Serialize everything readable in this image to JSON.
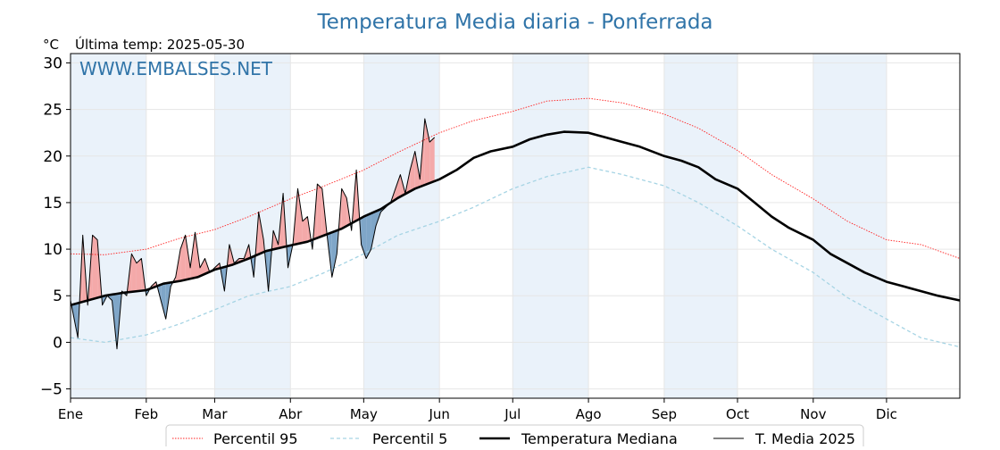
{
  "title": "Temperatura Media diaria - Ponferrada",
  "unit_label": "°C",
  "last_temp_label": "Última temp: 2025-05-30",
  "watermark": "WWW.EMBALSES.NET",
  "colors": {
    "title": "#3074a8",
    "watermark": "#3074a8",
    "p95": "#ff2020",
    "p5": "#a6d4e4",
    "median": "#000000",
    "media2025": "#000000",
    "above_fill": "#f4a9a9",
    "below_fill": "#7fa6c8",
    "month_band": "#eaf2fa"
  },
  "chart_data": {
    "type": "line",
    "xlabel": "",
    "ylabel": "°C",
    "ylim": [
      -6,
      31
    ],
    "y_ticks": [
      -5,
      0,
      5,
      10,
      15,
      20,
      25,
      30
    ],
    "y_tick_labels": [
      "−5",
      "0",
      "5",
      "10",
      "15",
      "20",
      "25",
      "30"
    ],
    "x_tick_labels": [
      "Ene",
      "Feb",
      "Mar",
      "Abr",
      "May",
      "Jun",
      "Jul",
      "Ago",
      "Sep",
      "Oct",
      "Nov",
      "Dic"
    ],
    "x_tick_days": [
      1,
      32,
      60,
      91,
      121,
      152,
      182,
      213,
      244,
      274,
      305,
      335
    ],
    "shaded_months": [
      "Ene",
      "Mar",
      "May",
      "Jul",
      "Sep",
      "Nov"
    ],
    "grid": true,
    "legend_position": "bottom",
    "series": [
      {
        "name": "Percentil 95",
        "style": "dotted",
        "day": [
          1,
          15,
          32,
          46,
          60,
          74,
          91,
          105,
          121,
          135,
          152,
          166,
          182,
          196,
          213,
          227,
          244,
          258,
          274,
          288,
          305,
          319,
          335,
          349,
          365
        ],
        "values": [
          9.5,
          9.4,
          10.0,
          11.2,
          12.1,
          13.5,
          15.4,
          16.8,
          18.5,
          20.4,
          22.5,
          23.8,
          24.8,
          25.9,
          26.2,
          25.7,
          24.5,
          23.0,
          20.6,
          18.0,
          15.4,
          13.0,
          11.0,
          10.5,
          9.0
        ]
      },
      {
        "name": "Percentil 5",
        "style": "dashed",
        "day": [
          1,
          15,
          32,
          46,
          60,
          74,
          91,
          105,
          121,
          135,
          152,
          166,
          182,
          196,
          213,
          227,
          244,
          258,
          274,
          288,
          305,
          319,
          335,
          349,
          365
        ],
        "values": [
          0.5,
          0.0,
          0.8,
          2.0,
          3.5,
          5.0,
          6.0,
          7.5,
          9.5,
          11.5,
          13.0,
          14.5,
          16.5,
          17.8,
          18.8,
          18.0,
          16.8,
          15.0,
          12.5,
          10.0,
          7.5,
          4.8,
          2.5,
          0.5,
          -0.5
        ]
      },
      {
        "name": "Temperatura Mediana",
        "style": "thick",
        "day": [
          1,
          8,
          15,
          22,
          32,
          39,
          46,
          53,
          60,
          67,
          74,
          81,
          91,
          98,
          105,
          112,
          121,
          128,
          135,
          142,
          152,
          159,
          166,
          173,
          182,
          189,
          196,
          203,
          213,
          220,
          227,
          234,
          244,
          251,
          258,
          265,
          274,
          281,
          288,
          295,
          305,
          312,
          319,
          326,
          335,
          342,
          349,
          356,
          365
        ],
        "values": [
          4.0,
          4.5,
          5.0,
          5.3,
          5.6,
          6.3,
          6.6,
          7.0,
          7.8,
          8.3,
          9.0,
          9.8,
          10.4,
          10.8,
          11.5,
          12.2,
          13.5,
          14.3,
          15.5,
          16.5,
          17.5,
          18.5,
          19.8,
          20.5,
          21.0,
          21.8,
          22.3,
          22.6,
          22.5,
          22.0,
          21.5,
          21.0,
          20.0,
          19.5,
          18.8,
          17.5,
          16.5,
          15.0,
          13.5,
          12.3,
          11.0,
          9.5,
          8.5,
          7.5,
          6.5,
          6.0,
          5.5,
          5.0,
          4.5
        ]
      },
      {
        "name": "T. Media 2025",
        "style": "thin",
        "day": [
          1,
          4,
          6,
          8,
          10,
          12,
          14,
          16,
          18,
          20,
          22,
          24,
          26,
          28,
          30,
          32,
          34,
          36,
          38,
          40,
          42,
          44,
          46,
          48,
          50,
          52,
          54,
          56,
          58,
          60,
          62,
          64,
          66,
          68,
          70,
          72,
          74,
          76,
          78,
          80,
          82,
          84,
          86,
          88,
          90,
          92,
          94,
          96,
          98,
          100,
          102,
          104,
          106,
          108,
          110,
          112,
          114,
          116,
          118,
          120,
          122,
          124,
          126,
          128,
          130,
          132,
          134,
          136,
          138,
          140,
          142,
          144,
          146,
          148,
          150
        ],
        "values": [
          4.5,
          0.5,
          11.5,
          4.0,
          11.5,
          11.0,
          4.0,
          5.0,
          4.5,
          -0.7,
          5.5,
          5.0,
          9.5,
          8.5,
          9.0,
          5.0,
          6.0,
          6.5,
          4.5,
          2.5,
          6.0,
          7.0,
          10.0,
          11.5,
          8.0,
          11.8,
          8.0,
          9.0,
          7.5,
          8.0,
          8.5,
          5.5,
          10.5,
          8.5,
          9.0,
          9.0,
          10.5,
          7.0,
          14.0,
          11.0,
          5.5,
          12.0,
          10.5,
          16.0,
          8.0,
          10.5,
          16.5,
          13.0,
          13.5,
          10.0,
          17.0,
          16.5,
          11.5,
          7.0,
          9.5,
          16.5,
          15.5,
          12.0,
          18.5,
          10.5,
          9.0,
          10.0,
          12.5,
          14.0,
          14.5,
          15.0,
          16.5,
          18.0,
          16.0,
          18.5,
          20.5,
          17.5,
          24.0,
          21.5,
          22.0
        ]
      }
    ]
  },
  "legend": {
    "items": [
      {
        "label": "Percentil 95"
      },
      {
        "label": "Percentil 5"
      },
      {
        "label": "Temperatura Mediana"
      },
      {
        "label": "T. Media 2025"
      }
    ]
  }
}
